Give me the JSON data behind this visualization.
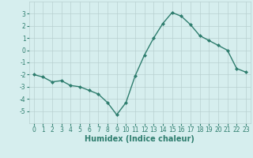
{
  "x": [
    0,
    1,
    2,
    3,
    4,
    5,
    6,
    7,
    8,
    9,
    10,
    11,
    12,
    13,
    14,
    15,
    16,
    17,
    18,
    19,
    20,
    21,
    22,
    23
  ],
  "y": [
    -2.0,
    -2.2,
    -2.6,
    -2.5,
    -2.9,
    -3.0,
    -3.3,
    -3.6,
    -4.3,
    -5.3,
    -4.3,
    -2.1,
    -0.4,
    1.0,
    2.2,
    3.1,
    2.8,
    2.1,
    1.2,
    0.8,
    0.4,
    0.0,
    -1.5,
    -1.8
  ],
  "line_color": "#2e7d6e",
  "marker": "D",
  "marker_size": 2.0,
  "bg_color": "#d6eeee",
  "grid_color": "#b8d0d0",
  "xlabel": "Humidex (Indice chaleur)",
  "ylim": [
    -6,
    4
  ],
  "xlim": [
    -0.5,
    23.5
  ],
  "yticks": [
    -5,
    -4,
    -3,
    -2,
    -1,
    0,
    1,
    2,
    3
  ],
  "xticks": [
    0,
    1,
    2,
    3,
    4,
    5,
    6,
    7,
    8,
    9,
    10,
    11,
    12,
    13,
    14,
    15,
    16,
    17,
    18,
    19,
    20,
    21,
    22,
    23
  ],
  "tick_color": "#2e7d6e",
  "tick_fontsize": 5.5,
  "xlabel_fontsize": 7.0,
  "linewidth": 1.0
}
